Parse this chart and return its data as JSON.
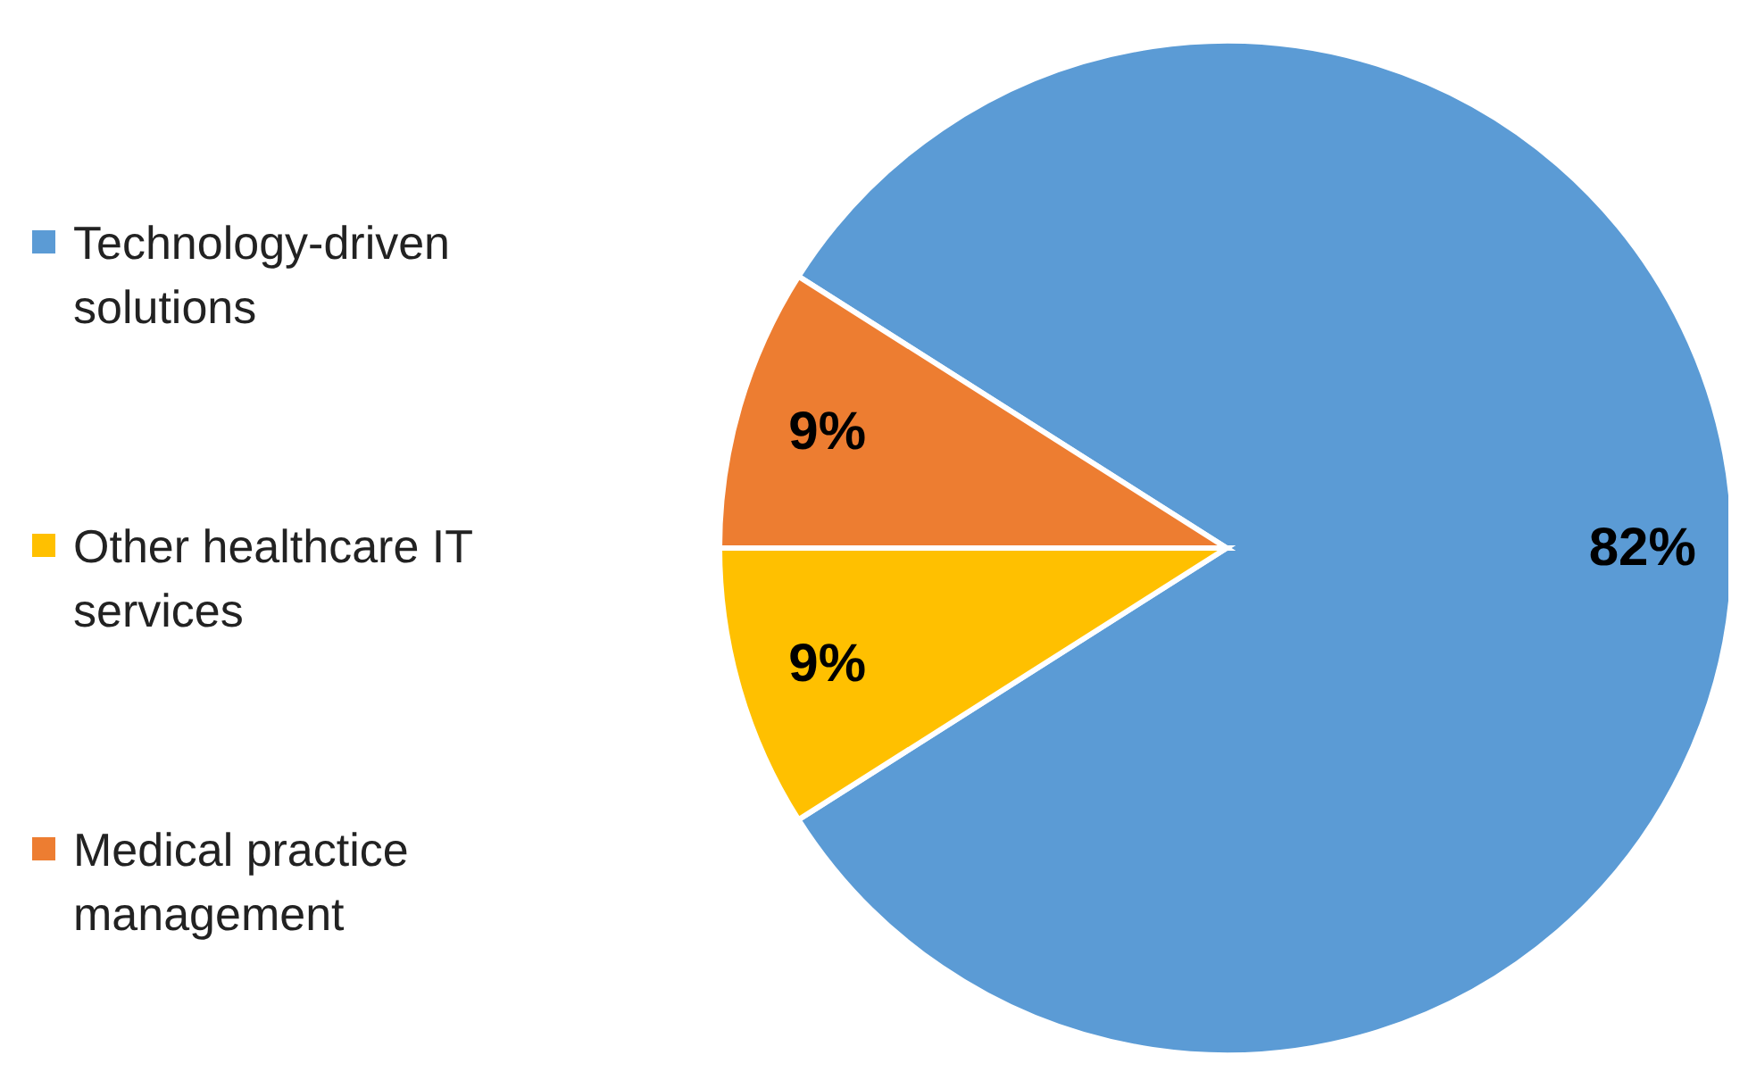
{
  "chart_data": {
    "type": "pie",
    "categories": [
      "Technology-driven solutions",
      "Other healthcare IT services",
      "Medical practice management"
    ],
    "values": [
      82,
      9,
      9
    ],
    "colors": [
      "#5b9bd5",
      "#ffc000",
      "#ed7d31"
    ],
    "value_labels": [
      "82%",
      "9%",
      "9%"
    ],
    "legend": "left"
  }
}
